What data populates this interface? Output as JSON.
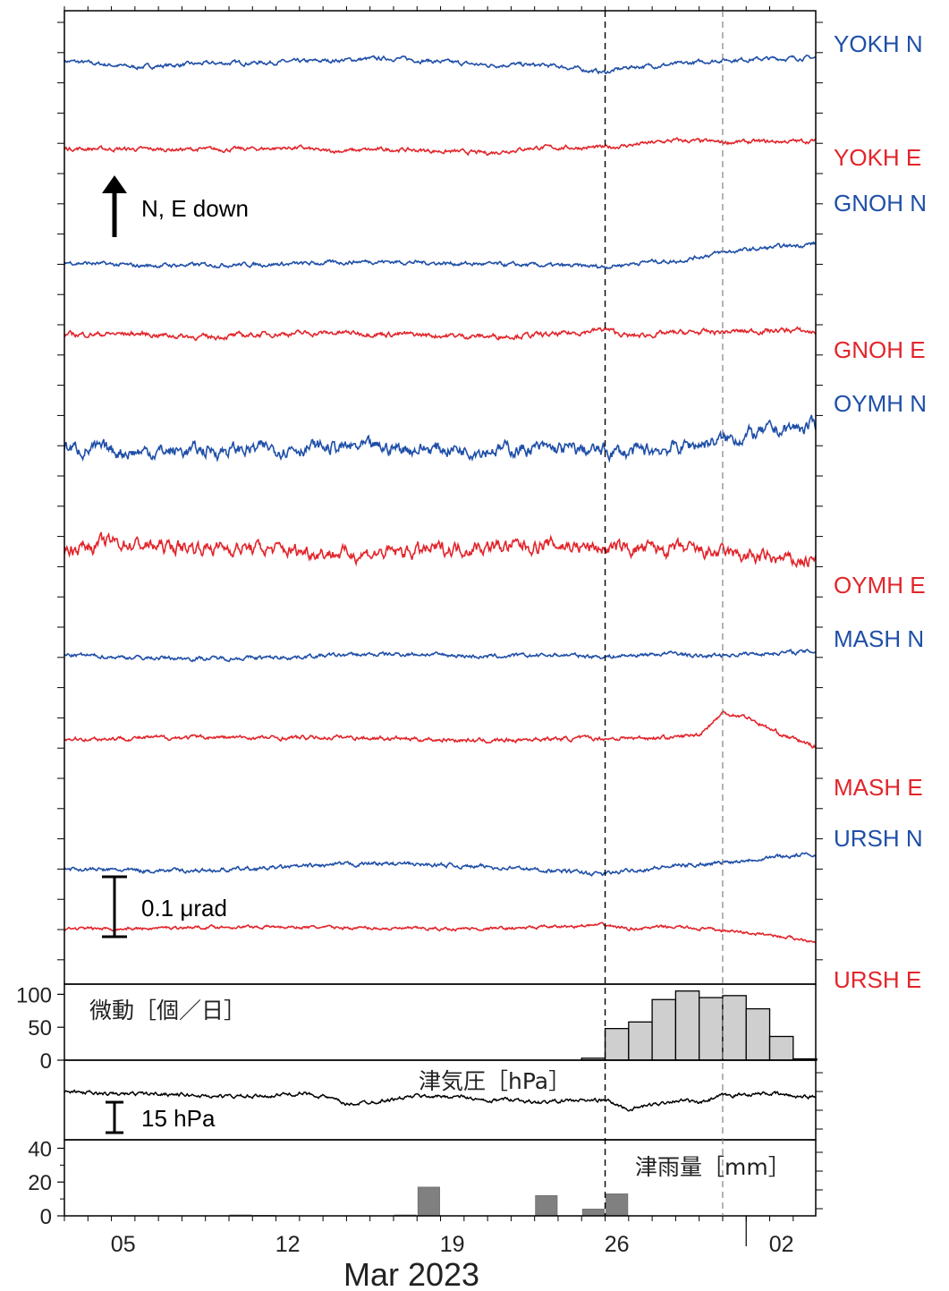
{
  "chart_data": [
    {
      "type": "line",
      "panel": "tilt",
      "annotation_arrow": "N, E down",
      "scale_bar_label": "0.1 μrad",
      "vertical_markers": [
        "2023-03-26",
        "2023-03-31"
      ],
      "series": [
        {
          "name": "YOKH N",
          "color": "#1f4fa8",
          "noise": 2,
          "points": [
            [
              0,
              4
            ],
            [
              3,
              -3
            ],
            [
              6,
              1
            ],
            [
              10,
              3
            ],
            [
              14,
              7
            ],
            [
              18,
              -1
            ],
            [
              19,
              0
            ],
            [
              21,
              -2
            ],
            [
              23,
              -9
            ],
            [
              24,
              -3
            ],
            [
              26,
              0
            ],
            [
              28,
              5
            ],
            [
              31,
              7
            ],
            [
              33,
              8
            ],
            [
              36,
              7
            ],
            [
              37,
              7
            ]
          ]
        },
        {
          "name": "YOKH E",
          "color": "#e2252b",
          "noise": 2,
          "points": [
            [
              0,
              -1
            ],
            [
              4,
              -2
            ],
            [
              7,
              -2
            ],
            [
              10,
              0
            ],
            [
              11,
              -4
            ],
            [
              14,
              -2
            ],
            [
              18,
              -6
            ],
            [
              20,
              0
            ],
            [
              23,
              0
            ],
            [
              26,
              8
            ],
            [
              28,
              6
            ],
            [
              31,
              7
            ],
            [
              37,
              10
            ]
          ]
        },
        {
          "name": "GNOH N",
          "color": "#1f4fa8",
          "noise": 2,
          "points": [
            [
              0,
              -1
            ],
            [
              3,
              -5
            ],
            [
              6,
              -4
            ],
            [
              10,
              -3
            ],
            [
              13,
              0
            ],
            [
              16,
              -2
            ],
            [
              19,
              -4
            ],
            [
              23,
              -6
            ],
            [
              25,
              0
            ],
            [
              26,
              0
            ],
            [
              28,
              10
            ],
            [
              30,
              15
            ],
            [
              32,
              20
            ],
            [
              34,
              21
            ],
            [
              37,
              23
            ]
          ]
        },
        {
          "name": "GNOH E",
          "color": "#e2252b",
          "noise": 2.5,
          "points": [
            [
              0,
              -1
            ],
            [
              3,
              0
            ],
            [
              6,
              -4
            ],
            [
              9,
              0
            ],
            [
              12,
              1
            ],
            [
              16,
              -2
            ],
            [
              18,
              -3
            ],
            [
              21,
              -1
            ],
            [
              23,
              5
            ],
            [
              24,
              -3
            ],
            [
              26,
              1
            ],
            [
              28,
              2
            ],
            [
              31,
              4
            ],
            [
              33,
              -1
            ],
            [
              36,
              -1
            ],
            [
              37,
              1
            ]
          ]
        },
        {
          "name": "OYMH N",
          "color": "#1f4fa8",
          "noise": 7,
          "points": [
            [
              0,
              -1
            ],
            [
              3,
              -5
            ],
            [
              7,
              -3
            ],
            [
              10,
              0
            ],
            [
              14,
              -1
            ],
            [
              18,
              -2
            ],
            [
              21,
              -2
            ],
            [
              24,
              -6
            ],
            [
              26,
              0
            ],
            [
              28,
              8
            ],
            [
              30,
              18
            ],
            [
              32,
              24
            ],
            [
              35,
              28
            ],
            [
              37,
              30
            ]
          ]
        },
        {
          "name": "OYMH E",
          "color": "#e2252b",
          "noise": 7,
          "points": [
            [
              0,
              1
            ],
            [
              2,
              9
            ],
            [
              4,
              4
            ],
            [
              7,
              3
            ],
            [
              11,
              -2
            ],
            [
              12,
              -4
            ],
            [
              14,
              -3
            ],
            [
              17,
              3
            ],
            [
              21,
              6
            ],
            [
              23,
              2
            ],
            [
              26,
              1
            ],
            [
              28,
              -4
            ],
            [
              31,
              -12
            ],
            [
              34,
              -10
            ],
            [
              37,
              -15
            ]
          ]
        },
        {
          "name": "MASH N",
          "color": "#1f4fa8",
          "noise": 2,
          "points": [
            [
              0,
              0
            ],
            [
              3,
              -3
            ],
            [
              6,
              -4
            ],
            [
              9,
              -3
            ],
            [
              12,
              0
            ],
            [
              15,
              1
            ],
            [
              18,
              -2
            ],
            [
              21,
              0
            ],
            [
              23,
              -2
            ],
            [
              26,
              2
            ],
            [
              27,
              -2
            ],
            [
              28,
              0
            ],
            [
              30,
              2
            ],
            [
              32,
              4
            ],
            [
              34,
              1
            ],
            [
              37,
              0
            ]
          ]
        },
        {
          "name": "MASH E",
          "color": "#e2252b",
          "noise": 2,
          "points": [
            [
              0,
              -1
            ],
            [
              3,
              0
            ],
            [
              6,
              1
            ],
            [
              9,
              0
            ],
            [
              12,
              1
            ],
            [
              15,
              -1
            ],
            [
              18,
              -3
            ],
            [
              20,
              -1
            ],
            [
              24,
              0
            ],
            [
              26,
              1
            ],
            [
              27,
              4
            ],
            [
              28,
              28
            ],
            [
              29,
              24
            ],
            [
              30,
              10
            ],
            [
              31,
              -1
            ],
            [
              33,
              -18
            ],
            [
              35,
              -25
            ],
            [
              37,
              -23
            ]
          ]
        },
        {
          "name": "URSH N",
          "color": "#1f4fa8",
          "noise": 2,
          "points": [
            [
              0,
              -1
            ],
            [
              3,
              -3
            ],
            [
              6,
              -3
            ],
            [
              9,
              0
            ],
            [
              13,
              5
            ],
            [
              16,
              3
            ],
            [
              19,
              0
            ],
            [
              23,
              -7
            ],
            [
              24,
              -3
            ],
            [
              26,
              2
            ],
            [
              28,
              6
            ],
            [
              30,
              12
            ],
            [
              32,
              15
            ],
            [
              34,
              17
            ],
            [
              37,
              16
            ]
          ]
        },
        {
          "name": "URSH E",
          "color": "#e2252b",
          "noise": 1.5,
          "points": [
            [
              0,
              -1
            ],
            [
              3,
              -1
            ],
            [
              6,
              1
            ],
            [
              9,
              1
            ],
            [
              12,
              0
            ],
            [
              15,
              -1
            ],
            [
              18,
              -1
            ],
            [
              21,
              1
            ],
            [
              23,
              3
            ],
            [
              24,
              -1
            ],
            [
              26,
              1
            ],
            [
              28,
              -3
            ],
            [
              30,
              -8
            ],
            [
              32,
              -15
            ],
            [
              34,
              -22
            ],
            [
              36,
              -25
            ],
            [
              37,
              -27
            ]
          ]
        }
      ]
    },
    {
      "type": "bar",
      "panel": "tremor",
      "title": "微動［個／日］",
      "yticks": [
        0,
        50,
        100
      ],
      "ylim": [
        0,
        110
      ],
      "bars": [
        {
          "x": "2023-03-25",
          "value": 3
        },
        {
          "x": "2023-03-26",
          "value": 48
        },
        {
          "x": "2023-03-27",
          "value": 58
        },
        {
          "x": "2023-03-28",
          "value": 92
        },
        {
          "x": "2023-03-29",
          "value": 105
        },
        {
          "x": "2023-03-30",
          "value": 95
        },
        {
          "x": "2023-03-31",
          "value": 98
        },
        {
          "x": "2023-04-01",
          "value": 78
        },
        {
          "x": "2023-04-02",
          "value": 36
        },
        {
          "x": "2023-04-03",
          "value": 2
        }
      ]
    },
    {
      "type": "line",
      "panel": "pressure",
      "title": "津気圧［hPa］",
      "scale_bar_label": "15 hPa",
      "noise": 1.8,
      "points": [
        [
          0,
          5
        ],
        [
          2,
          2
        ],
        [
          4,
          3
        ],
        [
          6,
          0
        ],
        [
          8,
          -1
        ],
        [
          10,
          3
        ],
        [
          11,
          0
        ],
        [
          12,
          -10
        ],
        [
          14,
          -4
        ],
        [
          15,
          0
        ],
        [
          17,
          -1
        ],
        [
          18,
          -7
        ],
        [
          19,
          -3
        ],
        [
          20,
          -8
        ],
        [
          21,
          -6
        ],
        [
          23,
          -5
        ],
        [
          24,
          -16
        ],
        [
          26,
          -5
        ],
        [
          26.5,
          -6
        ],
        [
          27,
          -9
        ],
        [
          28,
          0
        ],
        [
          29,
          2
        ],
        [
          30,
          3
        ],
        [
          31,
          0
        ],
        [
          33,
          -3
        ],
        [
          34,
          -5
        ],
        [
          36,
          -3
        ],
        [
          37,
          2
        ]
      ]
    },
    {
      "type": "bar",
      "panel": "rainfall",
      "title": "津雨量［mm］",
      "yticks": [
        0,
        20,
        40
      ],
      "ylim": [
        0,
        45
      ],
      "bars": [
        {
          "x": "2023-03-10",
          "value": 0.5
        },
        {
          "x": "2023-03-11",
          "value": 0.3
        },
        {
          "x": "2023-03-17",
          "value": 0.5
        },
        {
          "x": "2023-03-18",
          "value": 17
        },
        {
          "x": "2023-03-23",
          "value": 12
        },
        {
          "x": "2023-03-25",
          "value": 4
        },
        {
          "x": "2023-03-26",
          "value": 13
        }
      ]
    }
  ],
  "x_axis": {
    "tick_labels": [
      {
        "label": "05",
        "date": "2023-03-05"
      },
      {
        "label": "12",
        "date": "2023-03-12"
      },
      {
        "label": "19",
        "date": "2023-03-19"
      },
      {
        "label": "26",
        "date": "2023-03-26"
      },
      {
        "label": "02",
        "date": "2023-04-02"
      }
    ],
    "month_label": "Mar 2023",
    "start": "2023-03-03",
    "end": "2023-04-03T23:00"
  }
}
